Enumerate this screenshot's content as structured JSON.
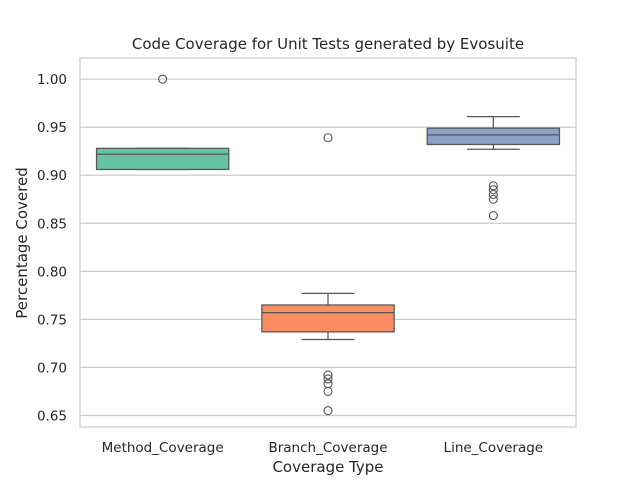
{
  "chart_data": {
    "type": "box",
    "title": "Code Coverage for Unit Tests generated by Evosuite",
    "xlabel": "Coverage Type",
    "ylabel": "Percentage Covered",
    "ylim": [
      0.638,
      1.022
    ],
    "yticks": [
      "0.65",
      "0.70",
      "0.75",
      "0.80",
      "0.85",
      "0.90",
      "0.95",
      "1.00"
    ],
    "grid": "horizontal",
    "categories": [
      "Method_Coverage",
      "Branch_Coverage",
      "Line_Coverage"
    ],
    "boxes": [
      {
        "category": "Method_Coverage",
        "color": "#66c2a5",
        "whisker_low": 0.906,
        "q1": 0.906,
        "median": 0.922,
        "q3": 0.928,
        "whisker_high": 0.928,
        "outliers": [
          1.0
        ]
      },
      {
        "category": "Branch_Coverage",
        "color": "#fc8d62",
        "whisker_low": 0.729,
        "q1": 0.737,
        "median": 0.757,
        "q3": 0.765,
        "whisker_high": 0.777,
        "outliers": [
          0.939,
          0.692,
          0.688,
          0.683,
          0.675,
          0.655
        ]
      },
      {
        "category": "Line_Coverage",
        "color": "#8da0cb",
        "whisker_low": 0.927,
        "q1": 0.932,
        "median": 0.942,
        "q3": 0.949,
        "whisker_high": 0.961,
        "outliers": [
          0.889,
          0.885,
          0.88,
          0.875,
          0.858
        ]
      }
    ]
  }
}
